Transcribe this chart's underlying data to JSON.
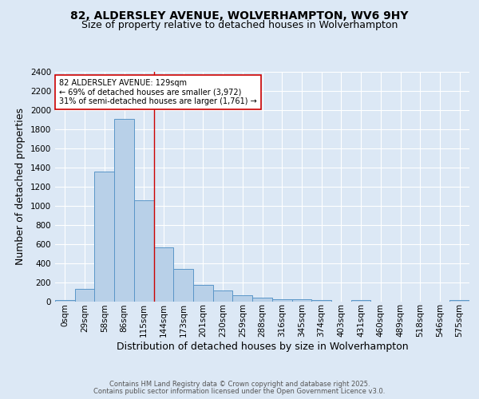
{
  "title1": "82, ALDERSLEY AVENUE, WOLVERHAMPTON, WV6 9HY",
  "title2": "Size of property relative to detached houses in Wolverhampton",
  "xlabel": "Distribution of detached houses by size in Wolverhampton",
  "ylabel": "Number of detached properties",
  "bar_labels": [
    "0sqm",
    "29sqm",
    "58sqm",
    "86sqm",
    "115sqm",
    "144sqm",
    "173sqm",
    "201sqm",
    "230sqm",
    "259sqm",
    "288sqm",
    "316sqm",
    "345sqm",
    "374sqm",
    "403sqm",
    "431sqm",
    "460sqm",
    "489sqm",
    "518sqm",
    "546sqm",
    "575sqm"
  ],
  "bar_values": [
    15,
    130,
    1360,
    1910,
    1055,
    565,
    340,
    170,
    110,
    60,
    35,
    25,
    18,
    10,
    0,
    15,
    0,
    0,
    0,
    0,
    15
  ],
  "bar_color": "#b8d0e8",
  "bar_edge_color": "#5a96c8",
  "ylim": [
    0,
    2400
  ],
  "yticks": [
    0,
    200,
    400,
    600,
    800,
    1000,
    1200,
    1400,
    1600,
    1800,
    2000,
    2200,
    2400
  ],
  "vline_x": 4.5,
  "annotation_text": "82 ALDERSLEY AVENUE: 129sqm\n← 69% of detached houses are smaller (3,972)\n31% of semi-detached houses are larger (1,761) →",
  "annotation_box_color": "#ffffff",
  "annotation_box_edge": "#cc0000",
  "vline_color": "#cc0000",
  "footer1": "Contains HM Land Registry data © Crown copyright and database right 2025.",
  "footer2": "Contains public sector information licensed under the Open Government Licence v3.0.",
  "bg_color": "#dce8f5",
  "plot_bg_color": "#dce8f5",
  "grid_color": "#ffffff",
  "title_fontsize": 10,
  "subtitle_fontsize": 9,
  "axis_label_fontsize": 9,
  "tick_fontsize": 7.5,
  "annot_fontsize": 7,
  "footer_fontsize": 6
}
